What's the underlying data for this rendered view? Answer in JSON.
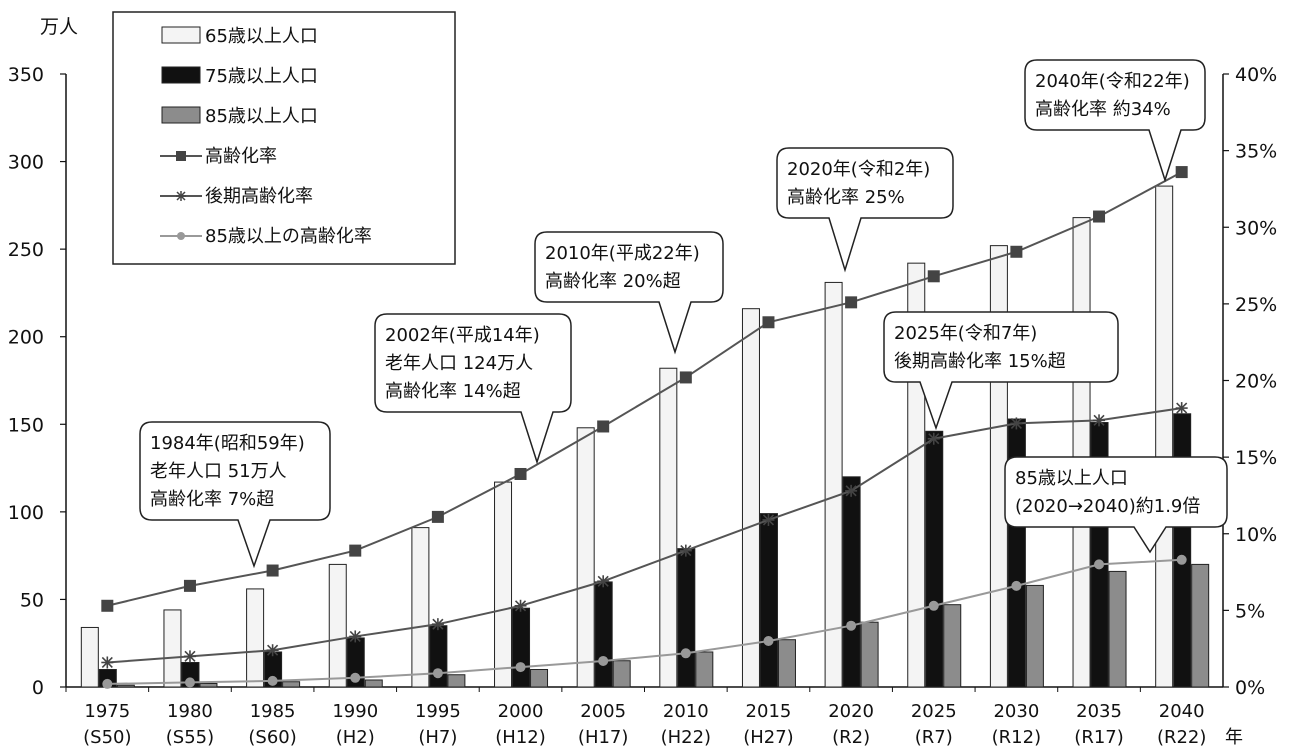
{
  "chart_data": {
    "type": "bar",
    "y_left_unit": "万人",
    "x_unit": "年",
    "ylim_left": [
      0,
      350
    ],
    "yticks_left": [
      "0",
      "50",
      "100",
      "150",
      "200",
      "250",
      "300",
      "350"
    ],
    "ylim_right": [
      0,
      40
    ],
    "yticks_right": [
      "0%",
      "5%",
      "10%",
      "15%",
      "20%",
      "25%",
      "30%",
      "35%",
      "40%"
    ],
    "categories": [
      {
        "year": "1975",
        "era": "(S50)"
      },
      {
        "year": "1980",
        "era": "(S55)"
      },
      {
        "year": "1985",
        "era": "(S60)"
      },
      {
        "year": "1990",
        "era": "(H2)"
      },
      {
        "year": "1995",
        "era": "(H7)"
      },
      {
        "year": "2000",
        "era": "(H12)"
      },
      {
        "year": "2005",
        "era": "(H17)"
      },
      {
        "year": "2010",
        "era": "(H22)"
      },
      {
        "year": "2015",
        "era": "(H27)"
      },
      {
        "year": "2020",
        "era": "(R2)"
      },
      {
        "year": "2025",
        "era": "(R7)"
      },
      {
        "year": "2030",
        "era": "(R12)"
      },
      {
        "year": "2035",
        "era": "(R17)"
      },
      {
        "year": "2040",
        "era": "(R22)"
      }
    ],
    "bar_series": [
      {
        "name": "65歳以上人口",
        "color": "#f4f4f4",
        "values": [
          34,
          44,
          56,
          70,
          91,
          117,
          148,
          182,
          216,
          231,
          242,
          252,
          268,
          286
        ]
      },
      {
        "name": "75歳以上人口",
        "color": "#111111",
        "values": [
          10,
          14,
          20,
          28,
          35,
          45,
          60,
          79,
          99,
          120,
          146,
          153,
          151,
          156
        ]
      },
      {
        "name": "85歳以上人口",
        "color": "#8c8c8c",
        "values": [
          1,
          2,
          3,
          4,
          7,
          10,
          15,
          20,
          27,
          37,
          47,
          58,
          66,
          70
        ]
      }
    ],
    "line_series": [
      {
        "name": "高齢化率",
        "color": "#555555",
        "marker": "square",
        "values": [
          5.3,
          6.6,
          7.6,
          8.9,
          11.1,
          13.9,
          17.0,
          20.2,
          23.8,
          25.1,
          26.8,
          28.4,
          30.7,
          33.6
        ]
      },
      {
        "name": "後期高齢化率",
        "color": "#555555",
        "marker": "star",
        "values": [
          1.6,
          2.0,
          2.4,
          3.3,
          4.1,
          5.3,
          6.9,
          8.9,
          10.9,
          12.8,
          16.2,
          17.2,
          17.4,
          18.2
        ]
      },
      {
        "name": "85歳以上の高齢化率",
        "color": "#999999",
        "marker": "circle",
        "values": [
          0.2,
          0.3,
          0.4,
          0.6,
          0.9,
          1.3,
          1.7,
          2.2,
          3.0,
          4.0,
          5.3,
          6.6,
          8.0,
          8.3
        ]
      }
    ],
    "callouts": [
      {
        "lines": [
          "1984年(昭和59年)",
          "老年人口  51万人",
          "高齢化率  7%超"
        ],
        "year_index": 2
      },
      {
        "lines": [
          "2002年(平成14年)",
          "老年人口 124万人",
          "高齢化率 14%超"
        ],
        "year_index": 5
      },
      {
        "lines": [
          "2010年(平成22年)",
          "高齢化率 20%超"
        ],
        "year_index": 7
      },
      {
        "lines": [
          "2020年(令和2年)",
          "高齢化率 25%"
        ],
        "year_index": 9
      },
      {
        "lines": [
          "2025年(令和7年)",
          "後期高齢化率 15%超"
        ],
        "year_index": 10
      },
      {
        "lines": [
          "2040年(令和22年)",
          "高齢化率 約34%"
        ],
        "year_index": 13
      },
      {
        "lines": [
          "85歳以上人口",
          "(2020→2040)約1.9倍"
        ],
        "year_index": 13
      }
    ]
  }
}
